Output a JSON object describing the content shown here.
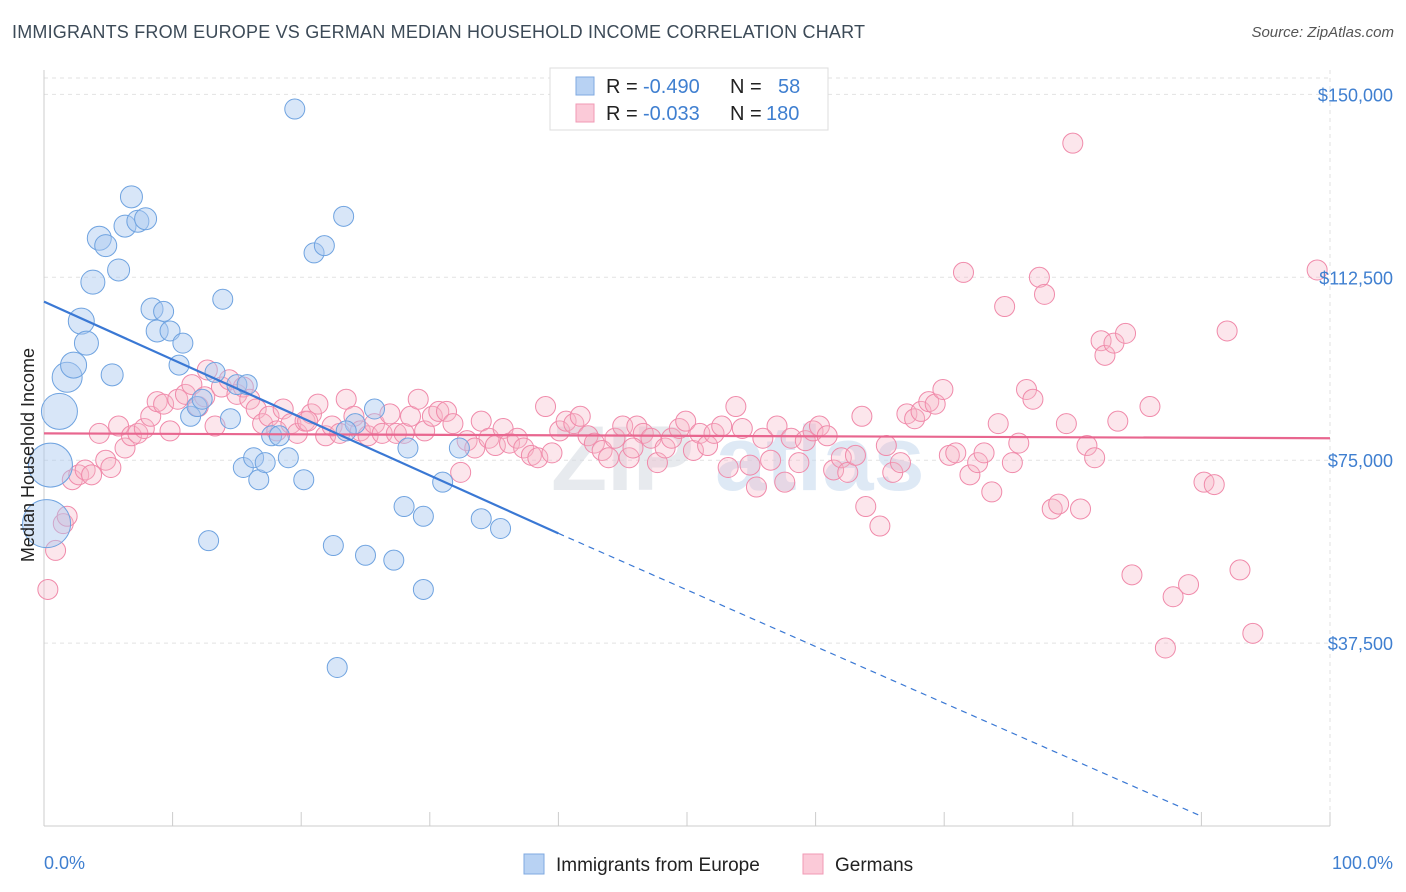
{
  "header": {
    "title": "IMMIGRANTS FROM EUROPE VS GERMAN MEDIAN HOUSEHOLD INCOME CORRELATION CHART",
    "source": "Source: ZipAtlas.com"
  },
  "watermark": {
    "part1": "ZIP",
    "part2": "atlas"
  },
  "legend": {
    "r_label": "R =",
    "n_label": "N =",
    "rows": [
      {
        "r": "-0.490",
        "n": "58",
        "color": "#a8c8f0"
      },
      {
        "r": "-0.033",
        "n": "180",
        "color": "#f7b6c8"
      }
    ]
  },
  "bottom_legend": [
    "Immigrants from Europe",
    "Germans"
  ],
  "chart_data": {
    "type": "scatter",
    "ylabel": "Median Household Income",
    "x_tick_labels": [
      "0.0%",
      "100.0%"
    ],
    "y_tick_labels": [
      "$150,000",
      "$112,500",
      "$75,000",
      "$37,500"
    ],
    "y_ticks": [
      150000,
      112500,
      75000,
      37500
    ],
    "xlim": [
      0,
      100
    ],
    "ylim": [
      0,
      155000
    ],
    "grid": true,
    "colors": {
      "europe": "#6fa3e0",
      "germans": "#f08aaa",
      "europe_line": "#3a78d4",
      "germans_line": "#e8668f"
    },
    "series": [
      {
        "name": "Immigrants from Europe",
        "trend": {
          "x0": 0,
          "y0": 107500,
          "x1": 40,
          "y1": 60000,
          "x_dash_end": 90,
          "y_dash_end": 2000
        },
        "points": [
          [
            0.2,
            62000,
            24
          ],
          [
            0.5,
            74000,
            22
          ],
          [
            1.2,
            85000,
            18
          ],
          [
            1.8,
            92000,
            15
          ],
          [
            2.3,
            94500,
            13
          ],
          [
            2.9,
            103500,
            13
          ],
          [
            3.3,
            99000,
            12
          ],
          [
            3.8,
            111500,
            12
          ],
          [
            4.3,
            120500,
            12
          ],
          [
            4.8,
            119000,
            11
          ],
          [
            5.3,
            92500,
            11
          ],
          [
            5.8,
            114000,
            11
          ],
          [
            6.3,
            123000,
            11
          ],
          [
            6.8,
            129000,
            11
          ],
          [
            7.3,
            124000,
            11
          ],
          [
            7.9,
            124500,
            11
          ],
          [
            8.4,
            106000,
            11
          ],
          [
            8.8,
            101500,
            11
          ],
          [
            9.3,
            105500,
            10
          ],
          [
            9.8,
            101500,
            10
          ],
          [
            10.5,
            94500,
            10
          ],
          [
            10.8,
            99000,
            10
          ],
          [
            11.4,
            84000,
            10
          ],
          [
            11.9,
            86000,
            10
          ],
          [
            12.3,
            87500,
            10
          ],
          [
            12.8,
            58500,
            10
          ],
          [
            13.3,
            93000,
            10
          ],
          [
            13.9,
            108000,
            10
          ],
          [
            14.5,
            83500,
            10
          ],
          [
            15.0,
            90500,
            10
          ],
          [
            15.5,
            73500,
            10
          ],
          [
            15.8,
            90500,
            10
          ],
          [
            16.3,
            75500,
            10
          ],
          [
            16.7,
            71000,
            10
          ],
          [
            17.2,
            74500,
            10
          ],
          [
            17.7,
            80000,
            10
          ],
          [
            18.3,
            80000,
            10
          ],
          [
            19.0,
            75500,
            10
          ],
          [
            19.5,
            147000,
            10
          ],
          [
            20.2,
            71000,
            10
          ],
          [
            21.0,
            117500,
            10
          ],
          [
            21.8,
            119000,
            10
          ],
          [
            22.5,
            57500,
            10
          ],
          [
            23.3,
            125000,
            10
          ],
          [
            24.2,
            82500,
            10
          ],
          [
            25.0,
            55500,
            10
          ],
          [
            25.7,
            85500,
            10
          ],
          [
            27.2,
            54500,
            10
          ],
          [
            28.0,
            65500,
            10
          ],
          [
            28.3,
            77500,
            10
          ],
          [
            29.5,
            63500,
            10
          ],
          [
            29.5,
            48500,
            10
          ],
          [
            31.0,
            70500,
            10
          ],
          [
            32.3,
            77500,
            10
          ],
          [
            34.0,
            63000,
            10
          ],
          [
            35.5,
            61000,
            10
          ],
          [
            22.8,
            32500,
            10
          ],
          [
            23.5,
            81000,
            10
          ]
        ]
      },
      {
        "name": "Germans",
        "trend": {
          "x0": 0,
          "y0": 80500,
          "x1": 100,
          "y1": 79500
        },
        "points": [
          [
            0.3,
            48500,
            10
          ],
          [
            0.9,
            56500,
            10
          ],
          [
            1.5,
            62000,
            10
          ],
          [
            1.8,
            63500,
            10
          ],
          [
            2.2,
            71000,
            10
          ],
          [
            2.7,
            72000,
            10
          ],
          [
            3.2,
            73000,
            10
          ],
          [
            3.7,
            72000,
            10
          ],
          [
            4.3,
            80500,
            10
          ],
          [
            4.8,
            75000,
            10
          ],
          [
            5.2,
            73500,
            10
          ],
          [
            5.8,
            82000,
            10
          ],
          [
            6.3,
            77500,
            10
          ],
          [
            6.8,
            80000,
            10
          ],
          [
            7.3,
            80500,
            10
          ],
          [
            7.8,
            81500,
            10
          ],
          [
            8.3,
            84000,
            10
          ],
          [
            8.8,
            87000,
            10
          ],
          [
            9.3,
            86500,
            10
          ],
          [
            9.8,
            81000,
            10
          ],
          [
            10.4,
            87500,
            10
          ],
          [
            11.0,
            88500,
            10
          ],
          [
            11.5,
            90500,
            10
          ],
          [
            12.0,
            86000,
            10
          ],
          [
            12.5,
            88000,
            10
          ],
          [
            12.7,
            93500,
            10
          ],
          [
            13.3,
            82000,
            10
          ],
          [
            13.8,
            90000,
            10
          ],
          [
            14.4,
            91500,
            10
          ],
          [
            15.0,
            88500,
            10
          ],
          [
            15.5,
            90000,
            10
          ],
          [
            16.0,
            87500,
            10
          ],
          [
            16.5,
            85500,
            10
          ],
          [
            17.0,
            82500,
            10
          ],
          [
            17.5,
            84000,
            10
          ],
          [
            18.1,
            81000,
            10
          ],
          [
            18.6,
            85500,
            10
          ],
          [
            19.2,
            82500,
            10
          ],
          [
            19.7,
            80500,
            10
          ],
          [
            20.3,
            83000,
            10
          ],
          [
            20.8,
            84500,
            10
          ],
          [
            21.3,
            86500,
            10
          ],
          [
            21.9,
            80000,
            10
          ],
          [
            22.4,
            82000,
            10
          ],
          [
            23.0,
            80500,
            10
          ],
          [
            23.5,
            87500,
            10
          ],
          [
            24.1,
            84000,
            10
          ],
          [
            24.6,
            81000,
            10
          ],
          [
            25.2,
            80000,
            10
          ],
          [
            25.7,
            82500,
            10
          ],
          [
            26.3,
            80500,
            10
          ],
          [
            26.9,
            84500,
            10
          ],
          [
            27.4,
            80500,
            10
          ],
          [
            28.0,
            80500,
            10
          ],
          [
            28.5,
            84000,
            10
          ],
          [
            29.1,
            87500,
            10
          ],
          [
            29.6,
            81000,
            10
          ],
          [
            30.2,
            84000,
            10
          ],
          [
            30.7,
            85000,
            10
          ],
          [
            31.3,
            85000,
            10
          ],
          [
            31.8,
            82500,
            10
          ],
          [
            32.4,
            72500,
            10
          ],
          [
            32.9,
            79000,
            10
          ],
          [
            33.5,
            77500,
            10
          ],
          [
            34.0,
            83000,
            10
          ],
          [
            34.6,
            79500,
            10
          ],
          [
            35.1,
            78000,
            10
          ],
          [
            35.7,
            81500,
            10
          ],
          [
            36.2,
            78500,
            10
          ],
          [
            36.8,
            79500,
            10
          ],
          [
            37.3,
            77500,
            10
          ],
          [
            37.9,
            76000,
            10
          ],
          [
            38.4,
            75500,
            10
          ],
          [
            39.0,
            86000,
            10
          ],
          [
            39.5,
            76500,
            10
          ],
          [
            40.1,
            81000,
            10
          ],
          [
            40.6,
            83000,
            10
          ],
          [
            41.2,
            82500,
            10
          ],
          [
            41.7,
            84000,
            10
          ],
          [
            42.3,
            80000,
            10
          ],
          [
            42.8,
            78500,
            10
          ],
          [
            43.4,
            77000,
            10
          ],
          [
            43.9,
            75500,
            10
          ],
          [
            44.4,
            79500,
            10
          ],
          [
            45.0,
            82000,
            10
          ],
          [
            45.5,
            75500,
            10
          ],
          [
            46.1,
            82000,
            10
          ],
          [
            46.6,
            80500,
            10
          ],
          [
            47.2,
            79500,
            10
          ],
          [
            47.7,
            74500,
            10
          ],
          [
            48.3,
            77500,
            10
          ],
          [
            48.8,
            79500,
            10
          ],
          [
            49.4,
            81500,
            10
          ],
          [
            49.9,
            83000,
            10
          ],
          [
            50.5,
            77000,
            10
          ],
          [
            51.0,
            80500,
            10
          ],
          [
            51.6,
            78000,
            10
          ],
          [
            52.1,
            80500,
            10
          ],
          [
            52.7,
            82000,
            10
          ],
          [
            53.2,
            73500,
            10
          ],
          [
            53.8,
            86000,
            10
          ],
          [
            54.3,
            81500,
            10
          ],
          [
            54.9,
            74000,
            10
          ],
          [
            55.4,
            69500,
            10
          ],
          [
            55.9,
            79500,
            10
          ],
          [
            56.5,
            75000,
            10
          ],
          [
            57.0,
            82000,
            10
          ],
          [
            57.6,
            70500,
            10
          ],
          [
            58.1,
            79500,
            10
          ],
          [
            58.7,
            74500,
            10
          ],
          [
            59.2,
            79000,
            10
          ],
          [
            59.8,
            81000,
            10
          ],
          [
            60.3,
            82000,
            10
          ],
          [
            60.9,
            80000,
            10
          ],
          [
            61.4,
            73000,
            10
          ],
          [
            62.0,
            75500,
            10
          ],
          [
            62.5,
            72500,
            10
          ],
          [
            63.1,
            76000,
            10
          ],
          [
            63.6,
            84000,
            10
          ],
          [
            63.9,
            65500,
            10
          ],
          [
            65.0,
            61500,
            10
          ],
          [
            65.5,
            78000,
            10
          ],
          [
            66.0,
            72500,
            10
          ],
          [
            66.6,
            74500,
            10
          ],
          [
            67.1,
            84500,
            10
          ],
          [
            67.7,
            83500,
            10
          ],
          [
            68.2,
            85000,
            10
          ],
          [
            68.8,
            87000,
            10
          ],
          [
            69.3,
            86500,
            10
          ],
          [
            69.9,
            89500,
            10
          ],
          [
            70.4,
            76000,
            10
          ],
          [
            70.9,
            76500,
            10
          ],
          [
            71.5,
            113500,
            10
          ],
          [
            72.0,
            72000,
            10
          ],
          [
            72.6,
            74500,
            10
          ],
          [
            73.1,
            76500,
            10
          ],
          [
            73.7,
            68500,
            10
          ],
          [
            74.2,
            82500,
            10
          ],
          [
            74.7,
            106500,
            10
          ],
          [
            75.3,
            74500,
            10
          ],
          [
            75.8,
            78500,
            10
          ],
          [
            76.4,
            89500,
            10
          ],
          [
            76.9,
            87500,
            10
          ],
          [
            77.4,
            112500,
            10
          ],
          [
            77.8,
            109000,
            10
          ],
          [
            78.4,
            65000,
            10
          ],
          [
            78.9,
            66000,
            10
          ],
          [
            79.5,
            82500,
            10
          ],
          [
            80.0,
            140000,
            10
          ],
          [
            80.6,
            65000,
            10
          ],
          [
            81.1,
            78000,
            10
          ],
          [
            81.7,
            75500,
            10
          ],
          [
            82.2,
            99500,
            10
          ],
          [
            82.5,
            96500,
            10
          ],
          [
            83.2,
            99000,
            10
          ],
          [
            83.5,
            83000,
            10
          ],
          [
            84.1,
            101000,
            10
          ],
          [
            84.6,
            51500,
            10
          ],
          [
            86.0,
            86000,
            10
          ],
          [
            87.2,
            36500,
            10
          ],
          [
            87.8,
            47000,
            10
          ],
          [
            89.0,
            49500,
            10
          ],
          [
            90.2,
            70500,
            10
          ],
          [
            91.0,
            70000,
            10
          ],
          [
            92.0,
            101500,
            10
          ],
          [
            93.0,
            52500,
            10
          ],
          [
            94.0,
            39500,
            10
          ],
          [
            99.0,
            114000,
            10
          ],
          [
            20.5,
            83000,
            10
          ],
          [
            45.8,
            77500,
            10
          ]
        ]
      }
    ]
  }
}
